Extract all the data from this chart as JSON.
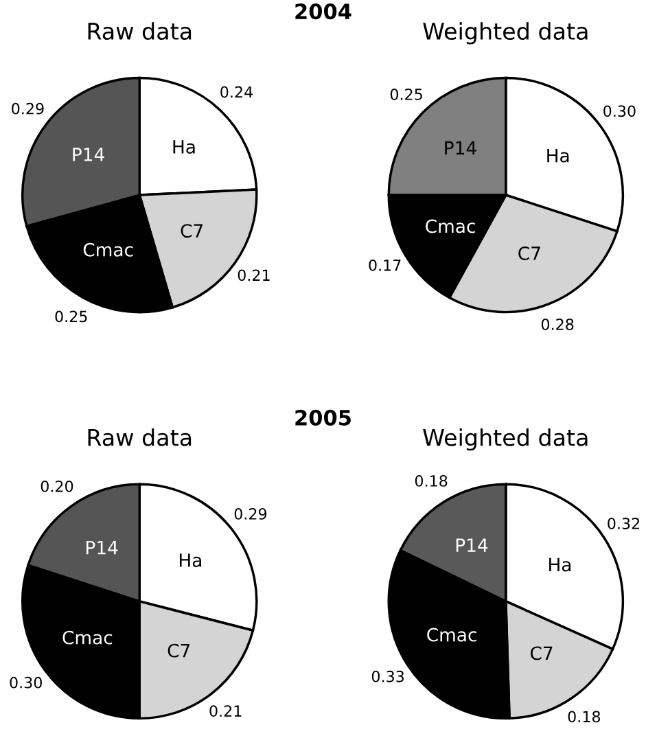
{
  "chart_data": [
    {
      "type": "pie",
      "title": "Raw data",
      "annotations": [
        "2004"
      ],
      "categories": [
        "Ha",
        "C7",
        "Cmac",
        "P14"
      ],
      "values": [
        0.24,
        0.21,
        0.25,
        0.29
      ],
      "value_labels": [
        "0.24",
        "0.21",
        "0.25",
        "0.29"
      ],
      "colors": [
        "#ffffff",
        "#d4d4d4",
        "#000000",
        "#555555"
      ]
    },
    {
      "type": "pie",
      "title": "Weighted data",
      "categories": [
        "Ha",
        "C7",
        "Cmac",
        "P14"
      ],
      "values": [
        0.3,
        0.28,
        0.17,
        0.25
      ],
      "value_labels": [
        "0.30",
        "0.28",
        "0.17",
        "0.25"
      ],
      "colors": [
        "#ffffff",
        "#d4d4d4",
        "#000000",
        "#808080"
      ]
    },
    {
      "type": "pie",
      "title": "Raw data",
      "annotations": [
        "2005"
      ],
      "categories": [
        "Ha",
        "C7",
        "Cmac",
        "P14"
      ],
      "values": [
        0.29,
        0.21,
        0.3,
        0.2
      ],
      "value_labels": [
        "0.29",
        "0.21",
        "0.30",
        "0.20"
      ],
      "colors": [
        "#ffffff",
        "#d4d4d4",
        "#000000",
        "#555555"
      ]
    },
    {
      "type": "pie",
      "title": "Weighted data",
      "categories": [
        "Ha",
        "C7",
        "Cmac",
        "P14"
      ],
      "values": [
        0.32,
        0.18,
        0.33,
        0.18
      ],
      "value_labels": [
        "0.32",
        "0.18",
        "0.33",
        "0.18"
      ],
      "colors": [
        "#ffffff",
        "#d4d4d4",
        "#000000",
        "#595959"
      ]
    }
  ]
}
